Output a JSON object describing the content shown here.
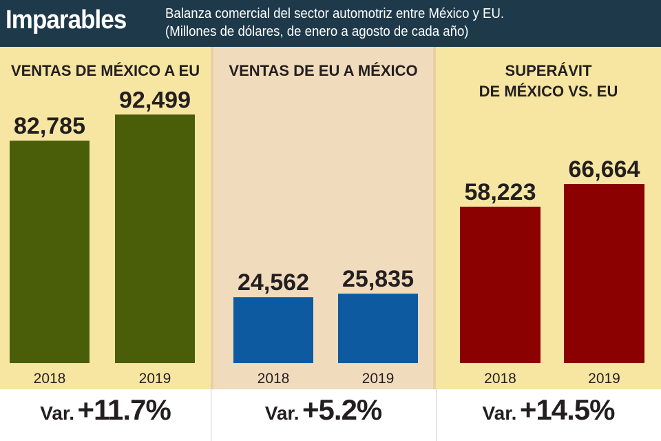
{
  "header": {
    "title": "Imparables",
    "subtitle_line1": "Balanza comercial del sector automotriz entre México y EU.",
    "subtitle_line2": "(Millones de dólares, de enero a agosto de cada año)"
  },
  "chart_data": [
    {
      "type": "bar",
      "title": "VENTAS DE MÉXICO A EU",
      "categories": [
        "2018",
        "2019"
      ],
      "values": [
        82785,
        92499
      ],
      "value_labels": [
        "82,785",
        "92,499"
      ],
      "color": "#4a5e09",
      "variation_label": "Var.",
      "variation": "+11.7%"
    },
    {
      "type": "bar",
      "title": "VENTAS DE EU A MÉXICO",
      "categories": [
        "2018",
        "2019"
      ],
      "values": [
        24562,
        25835
      ],
      "value_labels": [
        "24,562",
        "25,835"
      ],
      "color": "#0d5aa0",
      "variation_label": "Var.",
      "variation": "+5.2%"
    },
    {
      "type": "bar",
      "title": "SUPERÁVIT\nDE MÉXICO VS. EU",
      "categories": [
        "2018",
        "2019"
      ],
      "values": [
        58223,
        66664
      ],
      "value_labels": [
        "58,223",
        "66,664"
      ],
      "color": "#8b0000",
      "variation_label": "Var.",
      "variation": "+14.5%"
    }
  ]
}
